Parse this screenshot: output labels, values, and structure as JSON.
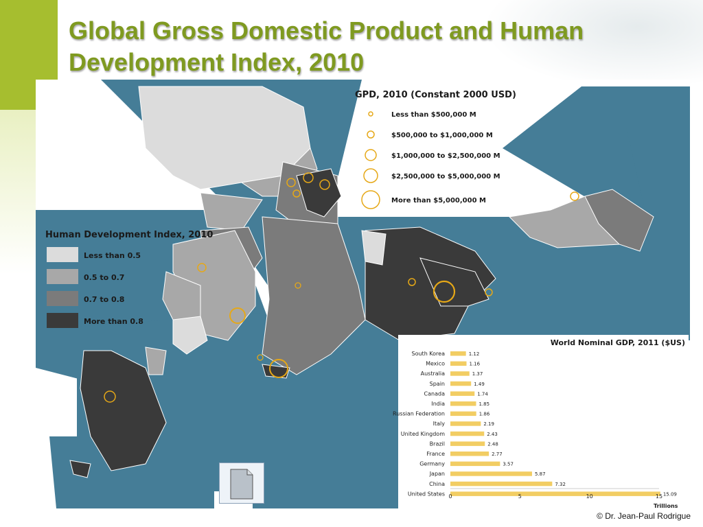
{
  "slide": {
    "title": "Global Gross Domestic Product and Human Development Index, 2010",
    "copyright": "© Dr. Jean-Paul Rodrigue"
  },
  "gdp_legend": {
    "title": "GPD, 2010 (Constant 2000 USD)",
    "items": [
      "Less than $500,000 M",
      "$500,000 to $1,000,000 M",
      "$1,000,000 to $2,500,000 M",
      "$2,500,000 to $5,000,000 M",
      "More than $5,000,000 M"
    ],
    "circle_color": "#e6a817"
  },
  "hdi_legend": {
    "title": "Human Development Index, 2010",
    "items": [
      {
        "label": "Less than 0.5",
        "color": "#dcdcdc"
      },
      {
        "label": "0.5 to 0.7",
        "color": "#a8a8a8"
      },
      {
        "label": "0.7 to 0.8",
        "color": "#7b7b7b"
      },
      {
        "label": "More than 0.8",
        "color": "#3a3a3a"
      }
    ]
  },
  "colors": {
    "ocean": "#457d97",
    "title": "#7f9a20",
    "accent": "#a6be2f",
    "bar": "#f2cd63"
  },
  "chart_data": {
    "type": "bar",
    "orientation": "horizontal",
    "title": "World Nominal GDP, 2011 ($US)",
    "xlabel": "Trillions",
    "xlim": [
      0,
      15
    ],
    "xticks": [
      "0",
      "5",
      "10",
      "15"
    ],
    "categories": [
      "South Korea",
      "Mexico",
      "Australia",
      "Spain",
      "Canada",
      "India",
      "Russian Federation",
      "Italy",
      "United Kingdom",
      "Brazil",
      "France",
      "Germany",
      "Japan",
      "China",
      "United States"
    ],
    "values": [
      1.12,
      1.16,
      1.37,
      1.49,
      1.74,
      1.85,
      1.86,
      2.19,
      2.43,
      2.48,
      2.77,
      3.57,
      5.87,
      7.32,
      15.09
    ],
    "value_labels": [
      "1.12",
      "1.16",
      "1.37",
      "1.49",
      "1.74",
      "1.85",
      "1.86",
      "2.19",
      "2.43",
      "2.48",
      "2.77",
      "3.57",
      "5.87",
      "7.32",
      "15.09"
    ],
    "grid": false
  }
}
